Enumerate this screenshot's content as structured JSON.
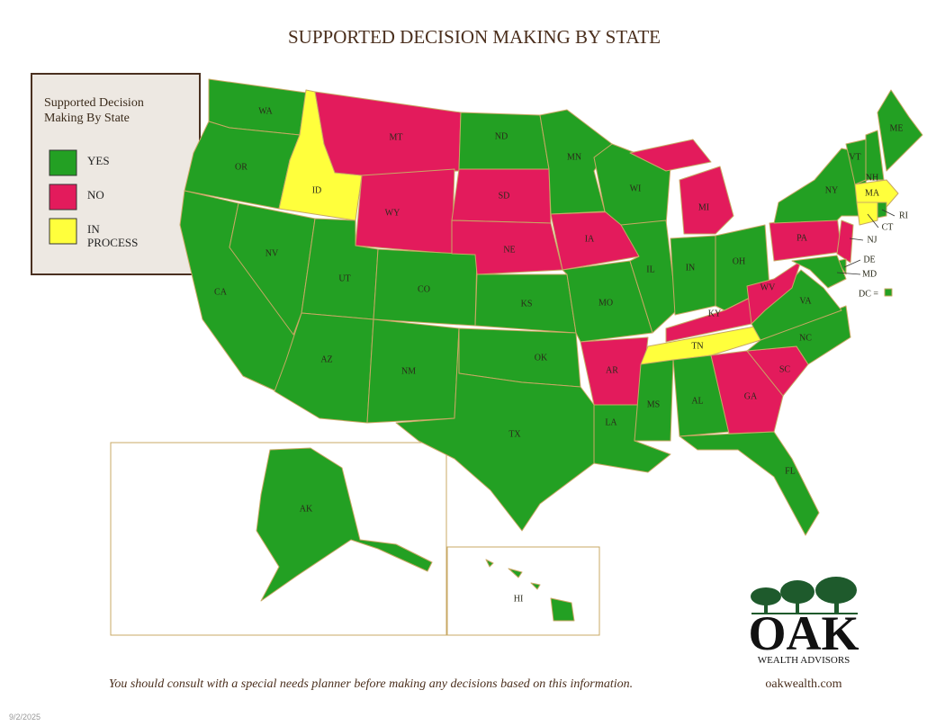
{
  "title": "SUPPORTED DECISION MAKING BY STATE",
  "legend": {
    "title": "Supported Decision Making By State",
    "items": [
      {
        "name": "YES",
        "color": "#23a023"
      },
      {
        "name": "NO",
        "color": "#e31b5c"
      },
      {
        "name": "IN PROCESS",
        "color": "#ffff3c"
      }
    ]
  },
  "states": [
    {
      "abbr": "WA",
      "status": "YES"
    },
    {
      "abbr": "OR",
      "status": "YES"
    },
    {
      "abbr": "CA",
      "status": "YES"
    },
    {
      "abbr": "NV",
      "status": "YES"
    },
    {
      "abbr": "ID",
      "status": "IN PROCESS"
    },
    {
      "abbr": "MT",
      "status": "NO"
    },
    {
      "abbr": "WY",
      "status": "NO"
    },
    {
      "abbr": "UT",
      "status": "YES"
    },
    {
      "abbr": "CO",
      "status": "YES"
    },
    {
      "abbr": "AZ",
      "status": "YES"
    },
    {
      "abbr": "NM",
      "status": "YES"
    },
    {
      "abbr": "ND",
      "status": "YES"
    },
    {
      "abbr": "SD",
      "status": "NO"
    },
    {
      "abbr": "NE",
      "status": "NO"
    },
    {
      "abbr": "KS",
      "status": "YES"
    },
    {
      "abbr": "OK",
      "status": "YES"
    },
    {
      "abbr": "TX",
      "status": "YES"
    },
    {
      "abbr": "MN",
      "status": "YES"
    },
    {
      "abbr": "IA",
      "status": "NO"
    },
    {
      "abbr": "MO",
      "status": "YES"
    },
    {
      "abbr": "AR",
      "status": "NO"
    },
    {
      "abbr": "LA",
      "status": "YES"
    },
    {
      "abbr": "WI",
      "status": "YES"
    },
    {
      "abbr": "IL",
      "status": "YES"
    },
    {
      "abbr": "MI",
      "status": "NO"
    },
    {
      "abbr": "IN",
      "status": "YES"
    },
    {
      "abbr": "OH",
      "status": "YES"
    },
    {
      "abbr": "KY",
      "status": "NO"
    },
    {
      "abbr": "TN",
      "status": "IN PROCESS"
    },
    {
      "abbr": "MS",
      "status": "YES"
    },
    {
      "abbr": "AL",
      "status": "YES"
    },
    {
      "abbr": "GA",
      "status": "NO"
    },
    {
      "abbr": "FL",
      "status": "YES"
    },
    {
      "abbr": "SC",
      "status": "NO"
    },
    {
      "abbr": "NC",
      "status": "YES"
    },
    {
      "abbr": "VA",
      "status": "YES"
    },
    {
      "abbr": "WV",
      "status": "NO"
    },
    {
      "abbr": "PA",
      "status": "NO"
    },
    {
      "abbr": "NY",
      "status": "YES"
    },
    {
      "abbr": "NJ",
      "status": "NO"
    },
    {
      "abbr": "DE",
      "status": "YES"
    },
    {
      "abbr": "MD",
      "status": "YES"
    },
    {
      "abbr": "VT",
      "status": "YES"
    },
    {
      "abbr": "NH",
      "status": "YES"
    },
    {
      "abbr": "ME",
      "status": "YES"
    },
    {
      "abbr": "MA",
      "status": "IN PROCESS"
    },
    {
      "abbr": "CT",
      "status": "IN PROCESS"
    },
    {
      "abbr": "RI",
      "status": "YES"
    },
    {
      "abbr": "DC =",
      "status": "YES"
    },
    {
      "abbr": "AK",
      "status": "YES"
    },
    {
      "abbr": "HI",
      "status": "YES"
    }
  ],
  "disclaimer": "You should consult with a special needs planner before making any decisions based on this information.",
  "logo": {
    "name": "OAK",
    "tagline": "WEALTH ADVISORS"
  },
  "website": "oakwealth.com",
  "date": "9/2/2025"
}
